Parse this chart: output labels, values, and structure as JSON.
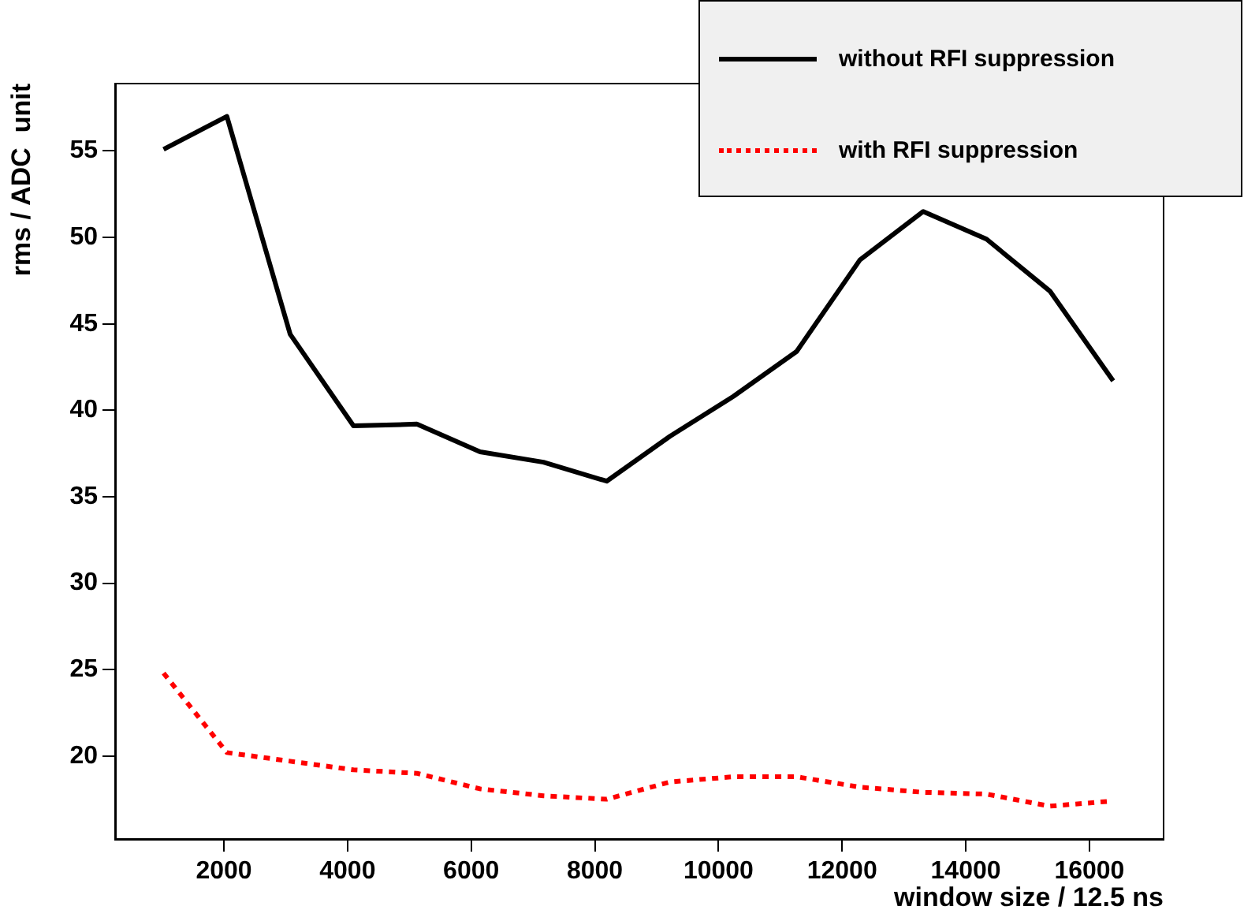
{
  "chart_data": {
    "type": "line",
    "xlabel": "window size / 12.5 ns",
    "ylabel": "rms / ADC  unit",
    "x": [
      1024,
      2048,
      3072,
      4096,
      5120,
      6144,
      7168,
      8192,
      9216,
      10240,
      11264,
      12288,
      13312,
      14336,
      15360,
      16384
    ],
    "series": [
      {
        "name": "without RFI suppression",
        "color": "#000000",
        "line_style": "solid",
        "values": [
          55.1,
          57.0,
          44.4,
          39.1,
          39.2,
          37.6,
          37.0,
          35.9,
          38.5,
          40.8,
          43.4,
          48.7,
          51.5,
          49.9,
          46.9,
          41.7
        ]
      },
      {
        "name": "with RFI suppression",
        "color": "#ff0000",
        "line_style": "dotted",
        "values": [
          24.8,
          20.2,
          19.7,
          19.2,
          19.0,
          18.1,
          17.7,
          17.5,
          18.5,
          18.8,
          18.8,
          18.2,
          17.9,
          17.8,
          17.1,
          17.4
        ]
      }
    ],
    "xlim": [
      240,
      17200
    ],
    "xticks": [
      2000,
      4000,
      6000,
      8000,
      10000,
      12000,
      14000,
      16000
    ],
    "ylim": [
      15.2,
      58.9
    ],
    "yticks": [
      20,
      25,
      30,
      35,
      40,
      45,
      50,
      55
    ],
    "grid": false,
    "legend": "top right",
    "marker": "none"
  }
}
